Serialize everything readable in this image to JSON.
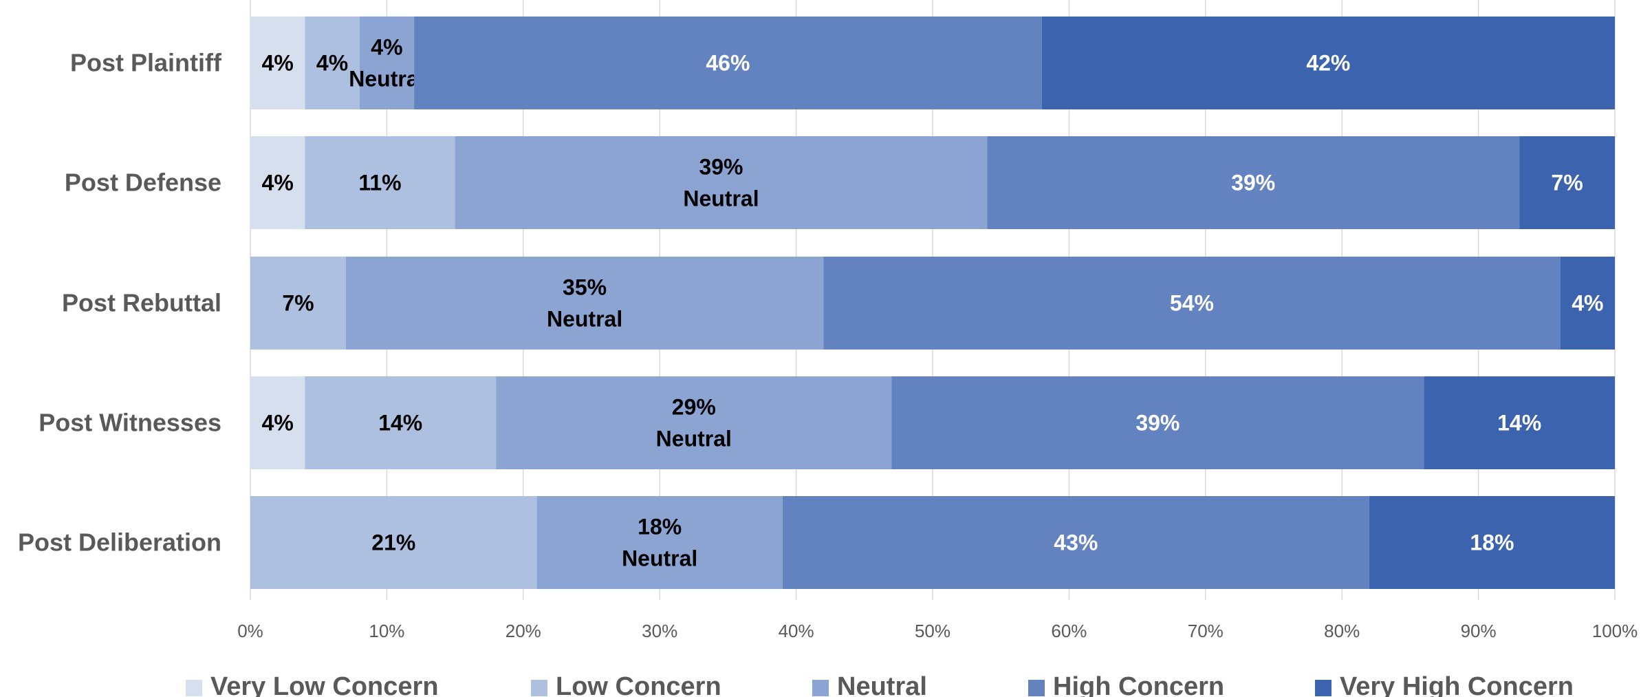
{
  "chart_data": {
    "type": "bar",
    "orientation": "horizontal",
    "stacked": "percent",
    "categories": [
      "Post Plaintiff",
      "Post Defense",
      "Post Rebuttal",
      "Post Witnesses",
      "Post Deliberation"
    ],
    "series": [
      {
        "name": "Very Low Concern",
        "color": "#d6dfee",
        "values": [
          4,
          4,
          0,
          4,
          0
        ],
        "labels": [
          "4%",
          "4%",
          "",
          "4%",
          ""
        ]
      },
      {
        "name": "Low Concern",
        "color": "#adc0e0",
        "values": [
          4,
          11,
          7,
          14,
          21
        ],
        "labels": [
          "4%",
          "11%",
          "7%",
          "14%",
          "21%"
        ]
      },
      {
        "name": "Neutral",
        "color": "#8ba4d1",
        "values": [
          4,
          39,
          35,
          29,
          18
        ],
        "labels": [
          "4%",
          "39%",
          "35%",
          "29%",
          "18%"
        ],
        "sublabel": "Neutral"
      },
      {
        "name": "High Concern",
        "color": "#6283c0",
        "values": [
          46,
          39,
          54,
          39,
          43
        ],
        "labels": [
          "46%",
          "39%",
          "54%",
          "39%",
          "43%"
        ]
      },
      {
        "name": "Very High Concern",
        "color": "#3b63ae",
        "values": [
          42,
          7,
          4,
          14,
          18
        ],
        "labels": [
          "42%",
          "7%",
          "4%",
          "14%",
          "18%"
        ]
      }
    ],
    "xlim": [
      0,
      100
    ],
    "xticks": [
      "0%",
      "10%",
      "20%",
      "30%",
      "40%",
      "50%",
      "60%",
      "70%",
      "80%",
      "90%",
      "100%"
    ],
    "grid": true,
    "legend_position": "bottom"
  }
}
